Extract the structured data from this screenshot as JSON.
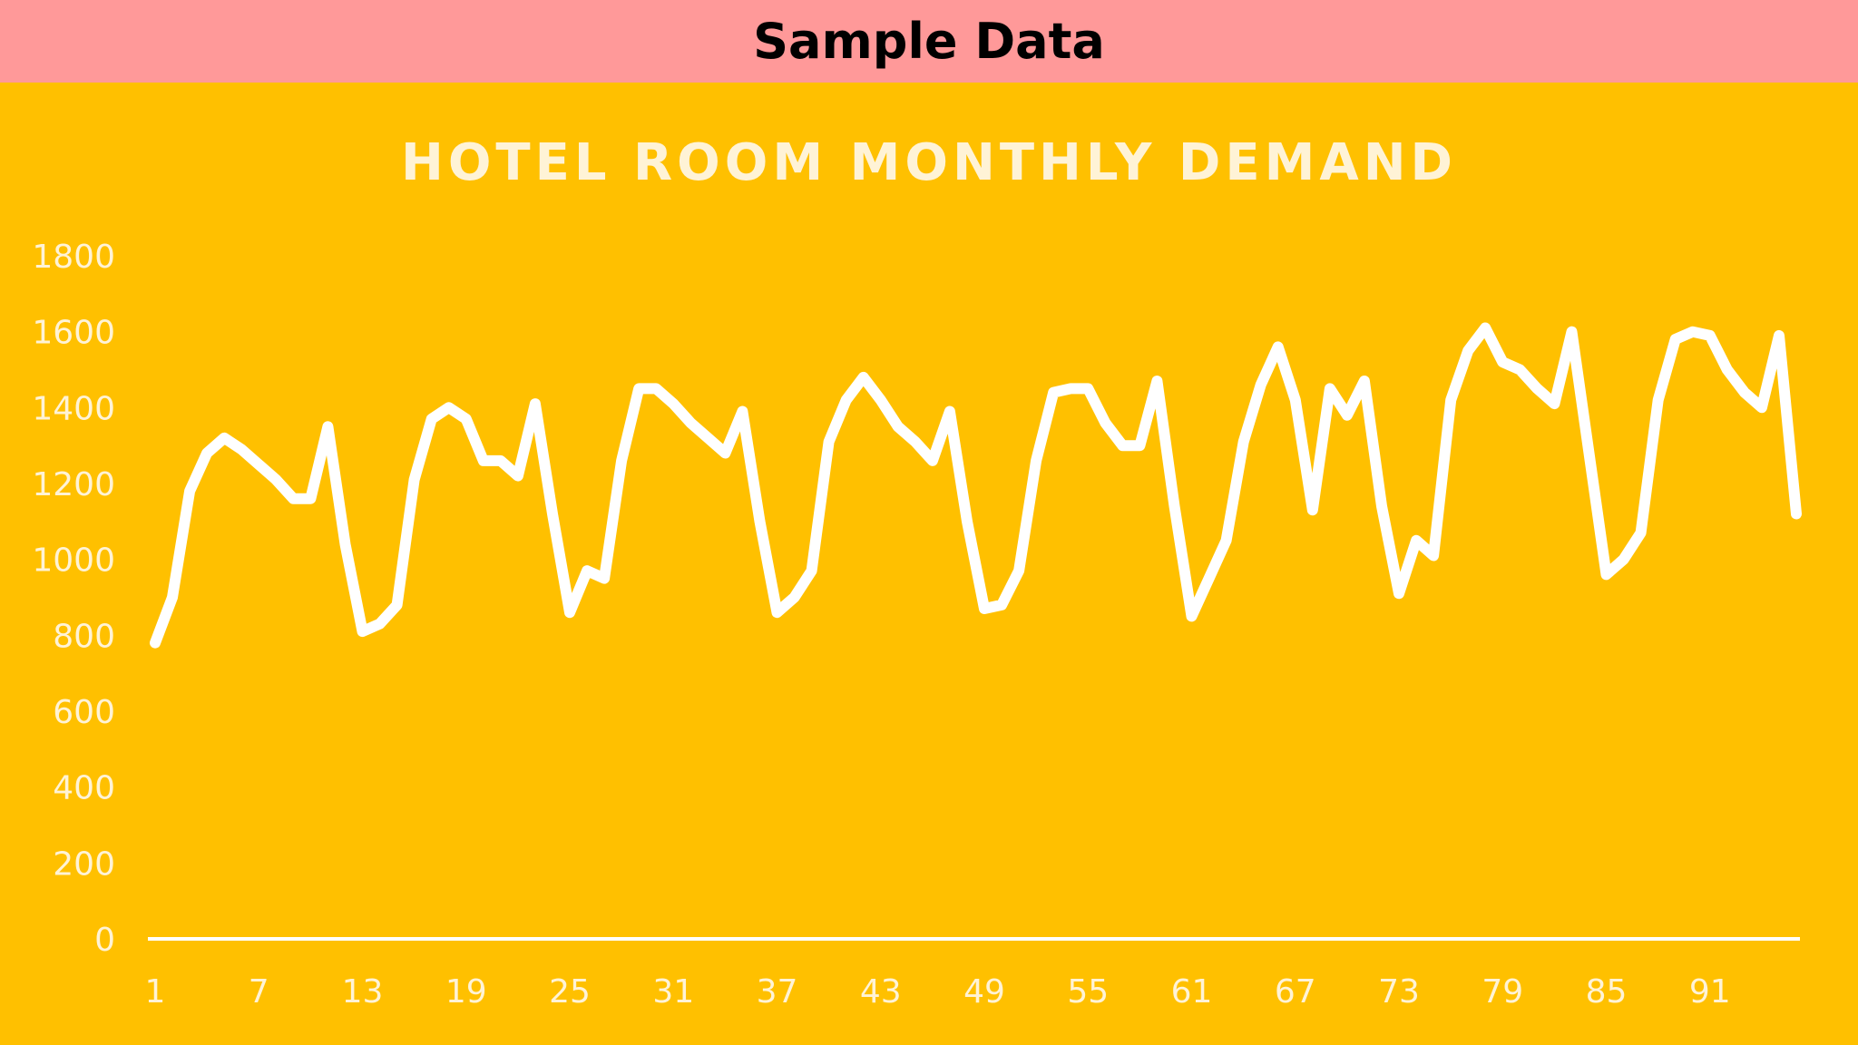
{
  "header": {
    "title": "Sample Data"
  },
  "colors": {
    "header_bg": "#FF9999",
    "chart_bg": "#FFC000",
    "line": "#FFFFFF",
    "text": "#FFF3D6"
  },
  "chart_data": {
    "type": "line",
    "title": "HOTEL ROOM MONTHLY DEMAND",
    "xlabel": "",
    "ylabel": "",
    "ylim": [
      0,
      1800
    ],
    "yticks": [
      0,
      200,
      400,
      600,
      800,
      1000,
      1200,
      1400,
      1600,
      1800
    ],
    "xticks": [
      1,
      7,
      13,
      19,
      25,
      31,
      37,
      43,
      49,
      55,
      61,
      67,
      73,
      79,
      85,
      91
    ],
    "drop_lines": true,
    "grid": false,
    "legend": "none",
    "series": [
      {
        "x": [
          1,
          2,
          3,
          4,
          5,
          6,
          7,
          8,
          9,
          10,
          11,
          12,
          13,
          14,
          15,
          16,
          17,
          18,
          19,
          20,
          21,
          22,
          23,
          24,
          25,
          26,
          27,
          28,
          29,
          30,
          31,
          32,
          33,
          34,
          35,
          36,
          37,
          38,
          39,
          40,
          41,
          42,
          43,
          44,
          45,
          46,
          47,
          48,
          49,
          50,
          51,
          52,
          53,
          54,
          55,
          56,
          57,
          58,
          59,
          60,
          61,
          62,
          63,
          64,
          65,
          66,
          67,
          68,
          69,
          70,
          71,
          72,
          73,
          74,
          75,
          76,
          77,
          78,
          79,
          80,
          81,
          82,
          83,
          84,
          85,
          86,
          87,
          88,
          89,
          90,
          91,
          92,
          93,
          94,
          95,
          96
        ],
        "values": [
          780,
          900,
          1180,
          1280,
          1320,
          1290,
          1250,
          1210,
          1160,
          1160,
          1350,
          1040,
          810,
          830,
          880,
          1210,
          1370,
          1400,
          1370,
          1260,
          1260,
          1220,
          1410,
          1120,
          860,
          970,
          950,
          1260,
          1450,
          1450,
          1410,
          1360,
          1320,
          1280,
          1390,
          1100,
          860,
          900,
          970,
          1310,
          1420,
          1480,
          1420,
          1350,
          1310,
          1260,
          1390,
          1100,
          870,
          880,
          970,
          1260,
          1440,
          1450,
          1450,
          1360,
          1300,
          1300,
          1470,
          1140,
          850,
          950,
          1050,
          1310,
          1460,
          1560,
          1420,
          1130,
          1450,
          1380,
          1470,
          1140,
          910,
          1050,
          1010,
          1420,
          1550,
          1610,
          1520,
          1500,
          1450,
          1410,
          1600,
          1280,
          960,
          1000,
          1070,
          1420,
          1580,
          1600,
          1590,
          1500,
          1440,
          1400,
          1590,
          1120
        ]
      }
    ]
  }
}
